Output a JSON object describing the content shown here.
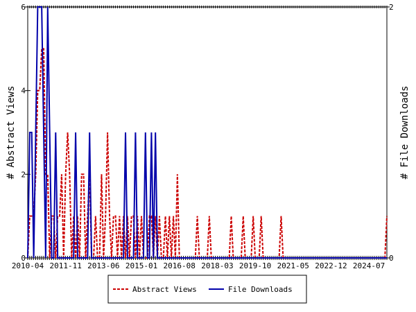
{
  "chart_data": {
    "type": "line",
    "categories": [
      "2010-04",
      null,
      null,
      null,
      null,
      null,
      null,
      null,
      null,
      null,
      null,
      null,
      null,
      null,
      null,
      null,
      null,
      null,
      null,
      "2011-11",
      null,
      null,
      null,
      null,
      null,
      null,
      null,
      null,
      null,
      null,
      null,
      null,
      null,
      null,
      null,
      null,
      null,
      null,
      "2013-06",
      null,
      null,
      null,
      null,
      null,
      null,
      null,
      null,
      null,
      null,
      null,
      null,
      null,
      null,
      null,
      null,
      null,
      null,
      "2015-01",
      null,
      null,
      null,
      null,
      null,
      null,
      null,
      null,
      null,
      null,
      null,
      null,
      null,
      null,
      null,
      null,
      null,
      null,
      "2016-08",
      null,
      null,
      null,
      null,
      null,
      null,
      null,
      null,
      null,
      null,
      null,
      null,
      null,
      null,
      null,
      null,
      null,
      null,
      "2018-03",
      null,
      null,
      null,
      null,
      null,
      null,
      null,
      null,
      null,
      null,
      null,
      null,
      null,
      null,
      null,
      null,
      null,
      null,
      "2019-10",
      null,
      null,
      null,
      null,
      null,
      null,
      null,
      null,
      null,
      null,
      null,
      null,
      null,
      null,
      null,
      null,
      null,
      null,
      "2021-05",
      null,
      null,
      null,
      null,
      null,
      null,
      null,
      null,
      null,
      null,
      null,
      null,
      null,
      null,
      null,
      null,
      null,
      null,
      "2022-12",
      null,
      null,
      null,
      null,
      null,
      null,
      null,
      null,
      null,
      null,
      null,
      null,
      null,
      null,
      null,
      null,
      null,
      null,
      "2024-07",
      null,
      null,
      null,
      null,
      null,
      null,
      null,
      null,
      null
    ],
    "series": [
      {
        "name": "Abstract Views",
        "color": "#cc0000",
        "dash": true,
        "values": [
          0,
          1,
          1,
          1,
          2,
          4,
          4,
          5,
          5,
          2,
          2,
          0,
          1,
          1,
          0,
          1,
          1,
          2,
          0,
          2,
          3,
          2,
          0,
          1,
          0,
          1,
          0,
          2,
          2,
          0,
          1,
          2,
          0,
          0,
          1,
          0,
          0,
          2,
          0,
          1,
          3,
          1,
          0,
          1,
          1,
          0,
          1,
          0,
          1,
          0,
          1,
          0,
          1,
          1,
          0,
          1,
          0,
          1,
          0,
          0,
          0,
          1,
          1,
          0,
          1,
          0,
          1,
          0,
          0,
          1,
          0,
          1,
          0,
          1,
          0,
          2,
          0,
          0,
          0,
          0,
          0,
          0,
          0,
          0,
          0,
          1,
          0,
          0,
          0,
          0,
          0,
          1,
          0,
          0,
          0,
          0,
          0,
          0,
          0,
          0,
          0,
          0,
          1,
          0,
          0,
          0,
          0,
          0,
          1,
          0,
          0,
          0,
          0,
          1,
          0,
          0,
          0,
          1,
          0,
          0,
          0,
          0,
          0,
          0,
          0,
          0,
          0,
          1,
          0,
          0,
          0,
          0,
          0,
          0,
          0,
          0,
          0,
          0,
          0,
          0,
          0,
          0,
          0,
          0,
          0,
          0,
          0,
          0,
          0,
          0,
          0,
          0,
          0,
          0,
          0,
          0,
          0,
          0,
          0,
          0,
          0,
          0,
          0,
          0,
          0,
          0,
          0,
          0,
          0,
          0,
          0,
          0,
          0,
          0,
          0,
          0,
          0,
          0,
          0,
          0,
          1
        ]
      },
      {
        "name": "File Downloads",
        "color": "#0000aa",
        "dash": false,
        "axis": "y2",
        "values": [
          0,
          1,
          1,
          0,
          1,
          2,
          2,
          2,
          1,
          0,
          2,
          1,
          0,
          0,
          1,
          0,
          0,
          0,
          0,
          0,
          0,
          0,
          0,
          0,
          1,
          0,
          0,
          0,
          0,
          0,
          0,
          1,
          0,
          0,
          0,
          0,
          0,
          0,
          0,
          0,
          0,
          0,
          0,
          0,
          0,
          0,
          0,
          0,
          0,
          1,
          0,
          0,
          0,
          0,
          1,
          0,
          0,
          0,
          0,
          1,
          0,
          0,
          1,
          0,
          1,
          0,
          0,
          0,
          0,
          0,
          0,
          0,
          0,
          0,
          0,
          0,
          0,
          0,
          0,
          0,
          0,
          0,
          0,
          0,
          0,
          0,
          0,
          0,
          0,
          0,
          0,
          0,
          0,
          0,
          0,
          0,
          0,
          0,
          0,
          0,
          0,
          0,
          0,
          0,
          0,
          0,
          0,
          0,
          0,
          0,
          0,
          0,
          0,
          0,
          0,
          0,
          0,
          0,
          0,
          0,
          0,
          0,
          0,
          0,
          0,
          0,
          0,
          0,
          0,
          0,
          0,
          0,
          0,
          0,
          0,
          0,
          0,
          0,
          0,
          0,
          0,
          0,
          0,
          0,
          0,
          0,
          0,
          0,
          0,
          0,
          0,
          0,
          0,
          0,
          0,
          0,
          0,
          0,
          0,
          0,
          0,
          0,
          0,
          0,
          0,
          0,
          0,
          0,
          0,
          0,
          0,
          0,
          0,
          0,
          0,
          0,
          0,
          0,
          0,
          0,
          0
        ]
      }
    ],
    "ylabel": "# Abstract Views",
    "y2label": "# File Downloads",
    "ylim": [
      0,
      6
    ],
    "yticks": [
      0,
      2,
      4,
      6
    ],
    "y2lim": [
      0,
      2
    ],
    "y2ticks": [
      0,
      2
    ],
    "legend": "bottom"
  }
}
